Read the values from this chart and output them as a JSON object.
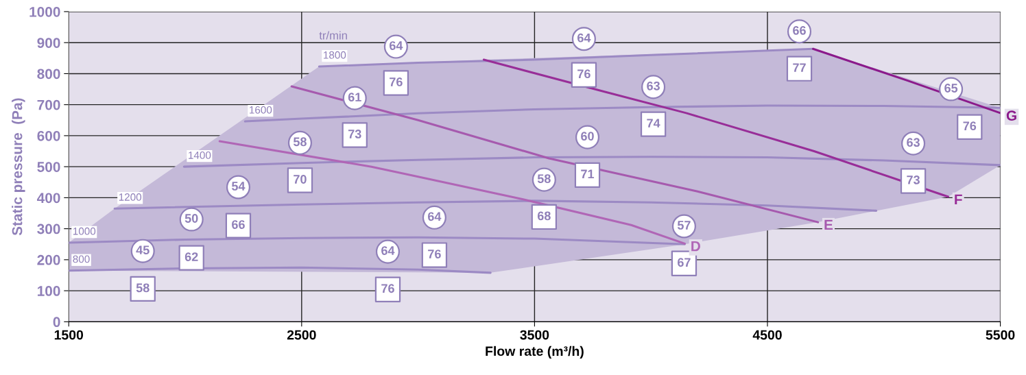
{
  "chart_data": {
    "type": "line",
    "xlabel": "Flow rate (m³/h)",
    "ylabel": "Static pressure  (Pa)",
    "xlim": [
      1500,
      5500
    ],
    "xticks": [
      1500,
      2500,
      3500,
      4500,
      5500
    ],
    "ylim": [
      0,
      1000
    ],
    "yticks": [
      0,
      100,
      200,
      300,
      400,
      500,
      600,
      700,
      800,
      900,
      1000
    ],
    "grid": true,
    "legend": false,
    "series": [
      {
        "name": "800",
        "color": "#9c8ac4",
        "x": [
          1500,
          2000,
          2500,
          3000,
          3311
        ],
        "values": [
          165,
          172,
          175,
          168,
          158
        ]
      },
      {
        "name": "1000",
        "color": "#9c8ac4",
        "x": [
          1500,
          2000,
          2500,
          3000,
          3500,
          4145
        ],
        "values": [
          255,
          265,
          270,
          272,
          268,
          250
        ]
      },
      {
        "name": "1200",
        "color": "#9c8ac4",
        "x": [
          1697,
          2500,
          3000,
          3500,
          4000,
          4500,
          4967
        ],
        "values": [
          365,
          378,
          385,
          390,
          385,
          375,
          358
        ]
      },
      {
        "name": "1400",
        "color": "#9c8ac4",
        "x": [
          1995,
          2500,
          3000,
          3500,
          4000,
          4500,
          5000,
          5500
        ],
        "values": [
          500,
          512,
          522,
          530,
          532,
          530,
          520,
          505
        ]
      },
      {
        "name": "1600",
        "color": "#9c8ac4",
        "x": [
          2257,
          2500,
          3000,
          3500,
          4000,
          4500,
          5000,
          5500
        ],
        "values": [
          646,
          655,
          672,
          685,
          692,
          697,
          696,
          690
        ]
      },
      {
        "name": "1800",
        "color": "#9c8ac4",
        "x": [
          2575,
          3000,
          3500,
          4000,
          4696
        ],
        "values": [
          823,
          835,
          845,
          860,
          880
        ]
      },
      {
        "name": "D",
        "color": "#b066b6",
        "x": [
          2148,
          2800,
          3444,
          3915,
          4145
        ],
        "values": [
          582,
          500,
          396,
          312,
          252
        ]
      },
      {
        "name": "E",
        "color": "#a65aae",
        "x": [
          2457,
          3000,
          3562,
          4200,
          4717
        ],
        "values": [
          759,
          650,
          527,
          420,
          321
        ]
      },
      {
        "name": "F",
        "color": "#982e98",
        "x": [
          3282,
          3800,
          4151,
          4700,
          5276
        ],
        "values": [
          845,
          742,
          673,
          550,
          403
        ]
      },
      {
        "name": "G",
        "color": "#8b1a8b",
        "x": [
          4696,
          5100,
          5500
        ],
        "values": [
          880,
          778,
          673
        ]
      },
      {
        "type": "scatter",
        "marker": "circle",
        "color": "#8f7fb8",
        "x": [
          2905,
          3712,
          4637,
          4010,
          2728,
          2493,
          3727,
          5288,
          5126,
          2228,
          3541,
          2027,
          3070,
          4142,
          1818,
          2870
        ],
        "values": [
          887,
          912,
          936,
          757,
          721,
          577,
          595,
          750,
          575,
          434,
          458,
          330,
          336,
          308,
          228,
          226
        ]
      },
      {
        "type": "scatter",
        "marker": "square",
        "color": "#8f7fb8",
        "x": [
          2905,
          3712,
          4637,
          4010,
          2728,
          2493,
          3727,
          5368,
          5126,
          2228,
          3541,
          2027,
          3070,
          4142,
          1818,
          2870
        ],
        "values": [
          770,
          796,
          816,
          637,
          602,
          456,
          473,
          628,
          454,
          310,
          338,
          206,
          215,
          188,
          106,
          104
        ]
      }
    ],
    "annotations": [
      "tr/min",
      {
        "text": "64",
        "x": 2905,
        "y": 887
      },
      {
        "text": "64",
        "x": 3712,
        "y": 912
      },
      {
        "text": "66",
        "x": 4637,
        "y": 936
      },
      {
        "text": "63",
        "x": 4010,
        "y": 757
      },
      {
        "text": "61",
        "x": 2728,
        "y": 721
      },
      {
        "text": "58",
        "x": 2493,
        "y": 577
      },
      {
        "text": "60",
        "x": 3727,
        "y": 595
      },
      {
        "text": "65",
        "x": 5288,
        "y": 750
      },
      {
        "text": "63",
        "x": 5126,
        "y": 575
      },
      {
        "text": "54",
        "x": 2228,
        "y": 434
      },
      {
        "text": "58",
        "x": 3541,
        "y": 458
      },
      {
        "text": "50",
        "x": 2027,
        "y": 330
      },
      {
        "text": "64",
        "x": 3070,
        "y": 336
      },
      {
        "text": "57",
        "x": 4142,
        "y": 308
      },
      {
        "text": "45",
        "x": 1818,
        "y": 228
      },
      {
        "text": "64",
        "x": 2870,
        "y": 226
      },
      {
        "text": "76",
        "x": 2905,
        "y": 770
      },
      {
        "text": "76",
        "x": 3712,
        "y": 796
      },
      {
        "text": "77",
        "x": 4637,
        "y": 816
      },
      {
        "text": "74",
        "x": 4010,
        "y": 637
      },
      {
        "text": "73",
        "x": 2728,
        "y": 602
      },
      {
        "text": "70",
        "x": 2493,
        "y": 456
      },
      {
        "text": "71",
        "x": 3727,
        "y": 473
      },
      {
        "text": "76",
        "x": 5368,
        "y": 628
      },
      {
        "text": "73",
        "x": 5126,
        "y": 454
      },
      {
        "text": "66",
        "x": 2228,
        "y": 310
      },
      {
        "text": "68",
        "x": 3541,
        "y": 338
      },
      {
        "text": "62",
        "x": 2027,
        "y": 206
      },
      {
        "text": "76",
        "x": 3070,
        "y": 215
      },
      {
        "text": "67",
        "x": 4142,
        "y": 188
      },
      {
        "text": "58",
        "x": 1818,
        "y": 106
      },
      {
        "text": "76",
        "x": 2870,
        "y": 104
      }
    ]
  }
}
